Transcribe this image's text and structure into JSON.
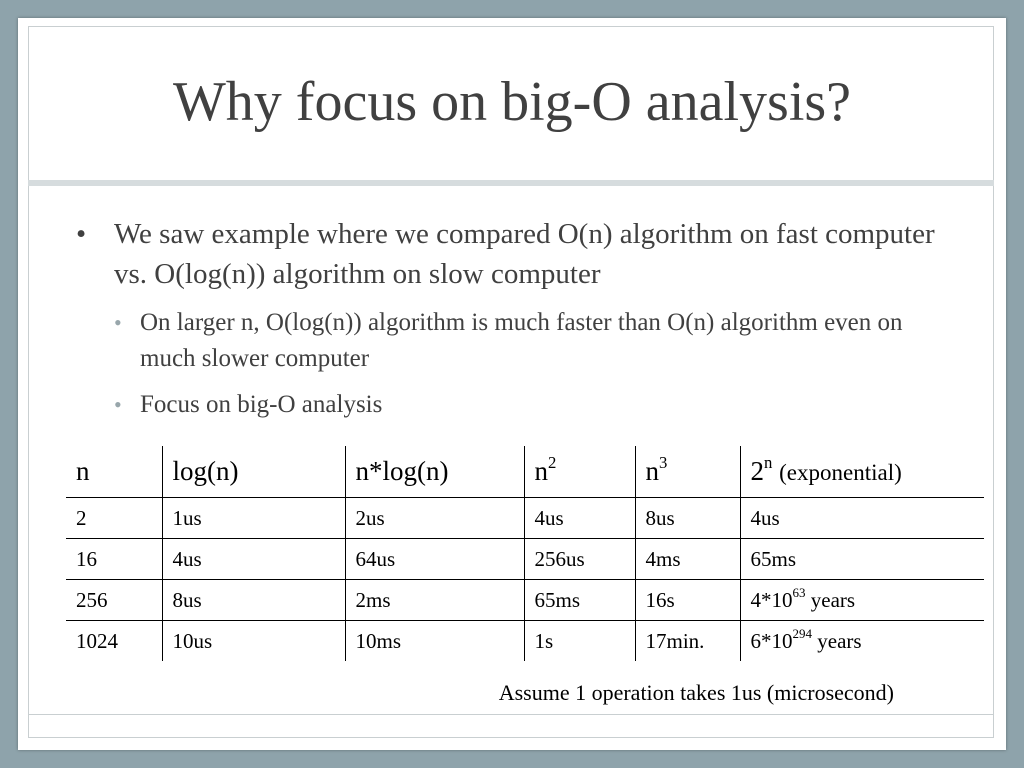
{
  "slide": {
    "title": "Why focus on big-O analysis?",
    "bullet1": "We saw example where we compared O(n) algorithm on fast computer vs. O(log(n)) algorithm on slow computer",
    "subbullets": [
      "On larger n, O(log(n)) algorithm is much faster than O(n) algorithm even on much slower computer",
      "Focus on big-O analysis"
    ],
    "note": "Assume 1 operation takes 1us (microsecond)"
  },
  "table": {
    "headers": {
      "n": "n",
      "log": "log(n)",
      "nlog": "n*log(n)",
      "n2_base": "n",
      "n2_exp": "2",
      "n3_base": "n",
      "n3_exp": "3",
      "exp_base": "2",
      "exp_exp": "n",
      "exp_label": "(exponential)"
    },
    "rows": [
      {
        "n": "2",
        "log": "1us",
        "nlog": "2us",
        "n2": "4us",
        "n3": "8us",
        "exp": "4us"
      },
      {
        "n": "16",
        "log": "4us",
        "nlog": "64us",
        "n2": "256us",
        "n3": "4ms",
        "exp": "65ms"
      },
      {
        "n": "256",
        "log": "8us",
        "nlog": "2ms",
        "n2": "65ms",
        "n3": "16s",
        "exp_base": "4*10",
        "exp_sup": "63",
        "exp_unit": "years"
      },
      {
        "n": "1024",
        "log": "10us",
        "nlog": "10ms",
        "n2": "1s",
        "n3": "17min.",
        "exp_base": "6*10",
        "exp_sup": "294",
        "exp_unit": "years"
      }
    ]
  },
  "colors": {
    "background": "#8ea3ab",
    "slide": "#ffffff",
    "text": "#404040",
    "subbullet_marker": "#98a6ab"
  }
}
